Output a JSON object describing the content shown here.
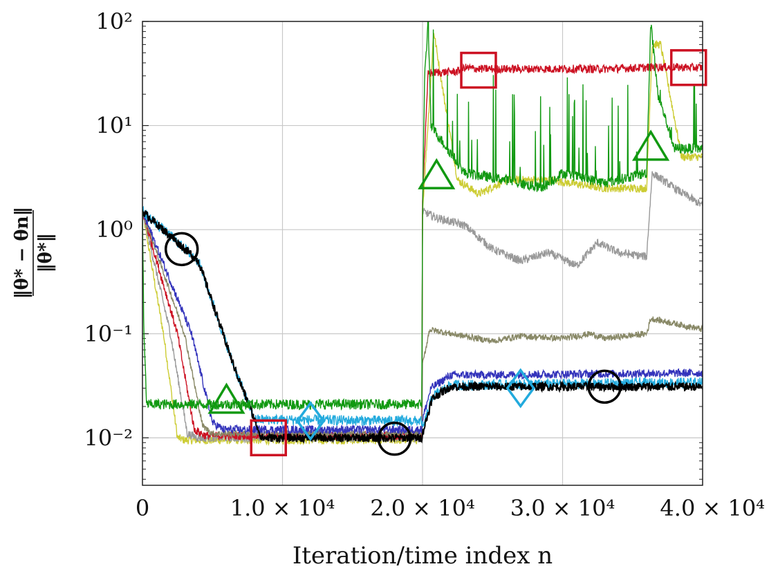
{
  "chart_data": {
    "type": "line",
    "title": "",
    "xlabel": "Iteration/time index n",
    "ylabel": "‖θ* − θn‖ / ‖θ*‖",
    "ylabel_numerator": "‖θ* − θn‖",
    "ylabel_denominator": "‖θ*‖",
    "yscale": "log",
    "xlim": [
      0,
      40000
    ],
    "ylim": [
      0.0035,
      100
    ],
    "x_ticks": [
      {
        "value": 0,
        "label": "0"
      },
      {
        "value": 10000,
        "label": "1.0 × 10⁴"
      },
      {
        "value": 20000,
        "label": "2.0 × 10⁴"
      },
      {
        "value": 30000,
        "label": "3.0 × 10⁴"
      },
      {
        "value": 40000,
        "label": "4.0 × 10⁴"
      }
    ],
    "y_ticks": [
      {
        "value": 0.01,
        "label": "10⁻²"
      },
      {
        "value": 0.1,
        "label": "10⁻¹"
      },
      {
        "value": 1,
        "label": "10⁰"
      },
      {
        "value": 10,
        "label": "10¹"
      },
      {
        "value": 100,
        "label": "10²"
      }
    ],
    "grid": true,
    "series": [
      {
        "name": "yellow",
        "color": "#cccc33",
        "noise": 0.04,
        "spikes": 0,
        "points": [
          [
            0,
            1.5
          ],
          [
            1500,
            0.1
          ],
          [
            2500,
            0.01
          ],
          [
            3000,
            0.0095
          ],
          [
            19950,
            0.0095
          ],
          [
            20000,
            1.5
          ],
          [
            20800,
            80
          ],
          [
            21500,
            20
          ],
          [
            22500,
            3
          ],
          [
            24000,
            2.2
          ],
          [
            26000,
            3
          ],
          [
            29000,
            3
          ],
          [
            33000,
            2.5
          ],
          [
            36000,
            2.5
          ],
          [
            36400,
            60
          ],
          [
            37000,
            60
          ],
          [
            38500,
            5
          ],
          [
            40000,
            5
          ]
        ]
      },
      {
        "name": "grey",
        "color": "#999999",
        "noise": 0.04,
        "spikes": 0,
        "points": [
          [
            0,
            1.5
          ],
          [
            2000,
            0.1
          ],
          [
            3200,
            0.011
          ],
          [
            4000,
            0.01
          ],
          [
            19950,
            0.01
          ],
          [
            20000,
            1.5
          ],
          [
            21000,
            1.3
          ],
          [
            23000,
            1.1
          ],
          [
            25000,
            0.65
          ],
          [
            27000,
            0.5
          ],
          [
            29000,
            0.6
          ],
          [
            31000,
            0.45
          ],
          [
            32500,
            0.75
          ],
          [
            34000,
            0.6
          ],
          [
            36000,
            0.55
          ],
          [
            36400,
            3.5
          ],
          [
            38000,
            2.5
          ],
          [
            40000,
            1.7
          ]
        ]
      },
      {
        "name": "red",
        "color": "#cc1122",
        "noise": 0.04,
        "spikes": 0,
        "points": [
          [
            0,
            1.5
          ],
          [
            2500,
            0.1
          ],
          [
            3700,
            0.012
          ],
          [
            4500,
            0.0105
          ],
          [
            19950,
            0.0105
          ],
          [
            20000,
            2
          ],
          [
            20400,
            32
          ],
          [
            22500,
            33
          ],
          [
            23000,
            36
          ],
          [
            24000,
            35
          ],
          [
            30000,
            35
          ],
          [
            33000,
            35
          ],
          [
            36000,
            36
          ],
          [
            36500,
            36.5
          ],
          [
            40000,
            36
          ]
        ]
      },
      {
        "name": "olive",
        "color": "#888866",
        "noise": 0.03,
        "spikes": 0,
        "points": [
          [
            0,
            1.5
          ],
          [
            3000,
            0.1
          ],
          [
            4300,
            0.013
          ],
          [
            5000,
            0.011
          ],
          [
            19950,
            0.011
          ],
          [
            20000,
            0.05
          ],
          [
            20500,
            0.11
          ],
          [
            22000,
            0.1
          ],
          [
            25000,
            0.085
          ],
          [
            27000,
            0.095
          ],
          [
            30000,
            0.09
          ],
          [
            32000,
            0.1
          ],
          [
            33000,
            0.09
          ],
          [
            36000,
            0.1
          ],
          [
            36300,
            0.14
          ],
          [
            40000,
            0.11
          ]
        ]
      },
      {
        "name": "blue",
        "color": "#3333bb",
        "noise": 0.04,
        "spikes": 0,
        "points": [
          [
            0,
            1.5
          ],
          [
            3500,
            0.1
          ],
          [
            5000,
            0.014
          ],
          [
            5800,
            0.012
          ],
          [
            19950,
            0.012
          ],
          [
            20000,
            0.015
          ],
          [
            20600,
            0.03
          ],
          [
            22000,
            0.04
          ],
          [
            40000,
            0.042
          ]
        ]
      },
      {
        "name": "cyan",
        "color": "#22aadd",
        "noise": 0.05,
        "spikes": 0,
        "points": [
          [
            0,
            1.5
          ],
          [
            4000,
            0.5
          ],
          [
            6500,
            0.05
          ],
          [
            8000,
            0.015
          ],
          [
            19950,
            0.0145
          ],
          [
            20000,
            0.012
          ],
          [
            20700,
            0.025
          ],
          [
            22000,
            0.032
          ],
          [
            40000,
            0.034
          ]
        ]
      },
      {
        "name": "black",
        "color": "#000000",
        "noise": 0.04,
        "spikes": 0,
        "points": [
          [
            0,
            1.5
          ],
          [
            4000,
            0.5
          ],
          [
            6500,
            0.05
          ],
          [
            8500,
            0.01
          ],
          [
            19950,
            0.01
          ],
          [
            20000,
            0.011
          ],
          [
            20700,
            0.024
          ],
          [
            22000,
            0.031
          ],
          [
            40000,
            0.031
          ]
        ]
      },
      {
        "name": "green",
        "color": "#119911",
        "noise": 0.05,
        "spikes": 40,
        "points": [
          [
            0,
            1.5
          ],
          [
            100,
            0.1
          ],
          [
            300,
            0.021
          ],
          [
            19950,
            0.021
          ],
          [
            20000,
            1.4
          ],
          [
            20150,
            30
          ],
          [
            20400,
            100
          ],
          [
            20600,
            10
          ],
          [
            23000,
            3.5
          ],
          [
            26000,
            3
          ],
          [
            28500,
            2.5
          ],
          [
            30000,
            3.5
          ],
          [
            33000,
            2.8
          ],
          [
            36000,
            3.5
          ],
          [
            36300,
            100
          ],
          [
            36800,
            20
          ],
          [
            38000,
            6
          ],
          [
            40000,
            6
          ]
        ]
      }
    ],
    "markers": [
      {
        "shape": "circle",
        "color": "#000000",
        "x": 2800,
        "y": 0.65
      },
      {
        "shape": "circle",
        "color": "#000000",
        "x": 18000,
        "y": 0.0098
      },
      {
        "shape": "circle",
        "color": "#000000",
        "x": 33000,
        "y": 0.031
      },
      {
        "shape": "triangle",
        "color": "#119911",
        "x": 6000,
        "y": 0.023
      },
      {
        "shape": "triangle",
        "color": "#119911",
        "x": 21000,
        "y": 3.3
      },
      {
        "shape": "triangle",
        "color": "#119911",
        "x": 36300,
        "y": 6.2
      },
      {
        "shape": "square",
        "color": "#cc1122",
        "x": 9000,
        "y": 0.01
      },
      {
        "shape": "square",
        "color": "#cc1122",
        "x": 24000,
        "y": 34
      },
      {
        "shape": "square",
        "color": "#cc1122",
        "x": 39000,
        "y": 36
      },
      {
        "shape": "diamond",
        "color": "#22aadd",
        "x": 12000,
        "y": 0.0145
      },
      {
        "shape": "diamond",
        "color": "#22aadd",
        "x": 27000,
        "y": 0.03
      }
    ]
  }
}
